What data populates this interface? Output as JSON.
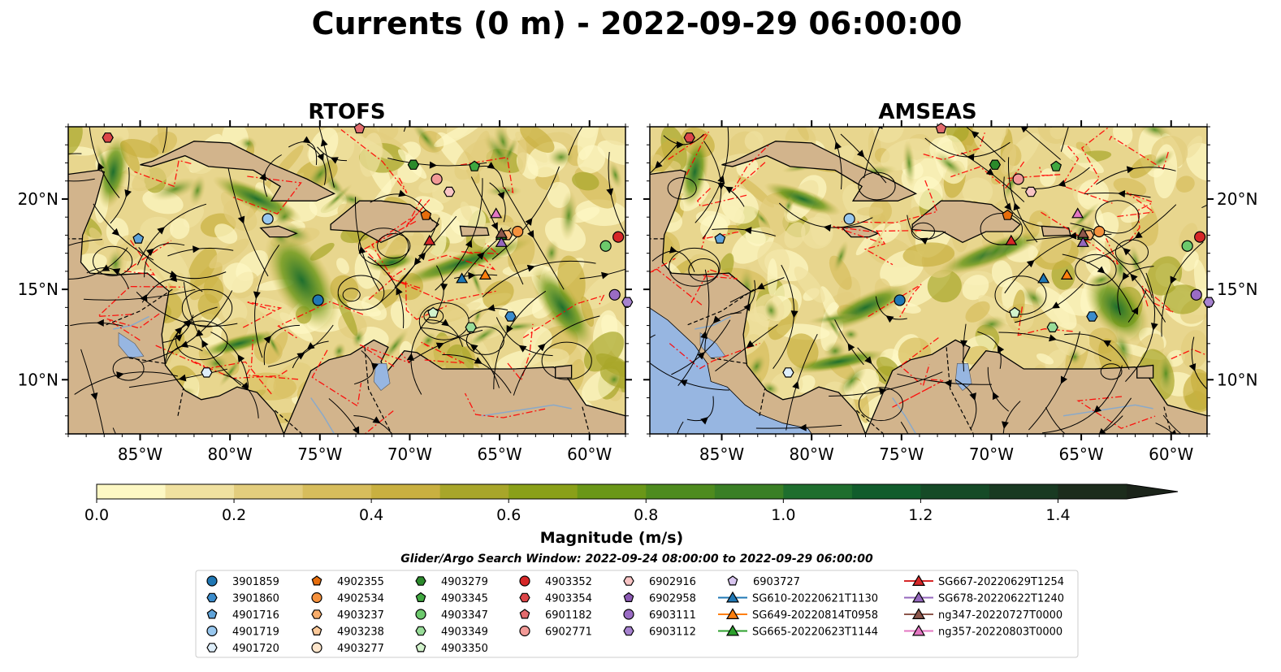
{
  "figure": {
    "title": "Currents (0 m) - 2022-09-29 06:00:00",
    "search_window": "Glider/Argo Search Window: 2022-09-24 08:00:00 to 2022-09-29 06:00:00"
  },
  "colors": {
    "land": "#d2b48c",
    "ocean_outside_domain": "#97b6e1",
    "eez_lines": "#ff0000",
    "streamlines": "#000000"
  },
  "chart_data": [
    {
      "type": "heatmap",
      "title": "RTOFS",
      "xlim": [
        -89,
        -58
      ],
      "ylim": [
        7,
        24
      ],
      "x_ticks": [
        -85,
        -80,
        -75,
        -70,
        -65,
        -60
      ],
      "x_tick_labels": [
        "85°W",
        "80°W",
        "75°W",
        "70°W",
        "65°W",
        "60°W"
      ],
      "y_ticks": [
        10,
        15,
        20
      ],
      "y_tick_labels": [
        "10°N",
        "15°N",
        "20°N"
      ],
      "y_label_side": "left"
    },
    {
      "type": "heatmap",
      "title": "AMSEAS",
      "xlim": [
        -89,
        -58
      ],
      "ylim": [
        7,
        24
      ],
      "x_ticks": [
        -85,
        -80,
        -75,
        -70,
        -65,
        -60
      ],
      "x_tick_labels": [
        "85°W",
        "80°W",
        "75°W",
        "70°W",
        "65°W",
        "60°W"
      ],
      "y_ticks": [
        10,
        15,
        20
      ],
      "y_tick_labels": [
        "10°N",
        "15°N",
        "20°N"
      ],
      "y_label_side": "right"
    }
  ],
  "colorbar": {
    "label": "Magnitude (m/s)",
    "min": 0.0,
    "max": 1.5,
    "step": 0.1,
    "extend": "max",
    "ticks": [
      0.0,
      0.2,
      0.4,
      0.6,
      0.8,
      1.0,
      1.2,
      1.4
    ],
    "tick_labels": [
      "0.0",
      "0.2",
      "0.4",
      "0.6",
      "0.8",
      "1.0",
      "1.2",
      "1.4"
    ],
    "colors": [
      "#fdf8c4",
      "#f0e1a0",
      "#e3cd7d",
      "#d7bd5c",
      "#c9b040",
      "#a8a62a",
      "#8aa019",
      "#6a9718",
      "#4e8b1e",
      "#3a7f25",
      "#1e6e2e",
      "#115c2c",
      "#154a27",
      "#193a22",
      "#1c2c1c"
    ],
    "extend_color": "#1b241a"
  },
  "legend": {
    "columns": [
      [
        {
          "label": "3901859",
          "marker": "circle",
          "color": "#1f77b4"
        },
        {
          "label": "3901860",
          "marker": "hexagon",
          "color": "#3b8ccc"
        },
        {
          "label": "4901716",
          "marker": "pentagon",
          "color": "#5fa3d9"
        },
        {
          "label": "4901719",
          "marker": "circle",
          "color": "#98c7ee"
        },
        {
          "label": "4901720",
          "marker": "hexagon",
          "color": "#deeefa"
        }
      ],
      [
        {
          "label": "4902355",
          "marker": "pentagon",
          "color": "#e66d0c"
        },
        {
          "label": "4902534",
          "marker": "circle",
          "color": "#f5913d"
        },
        {
          "label": "4903237",
          "marker": "hexagon",
          "color": "#f8ad6b"
        },
        {
          "label": "4903238",
          "marker": "pentagon",
          "color": "#fbc999"
        },
        {
          "label": "4903277",
          "marker": "circle",
          "color": "#fde5cb"
        }
      ],
      [
        {
          "label": "4903279",
          "marker": "hexagon",
          "color": "#2b8a2b"
        },
        {
          "label": "4903345",
          "marker": "pentagon",
          "color": "#40a840"
        },
        {
          "label": "4903347",
          "marker": "circle",
          "color": "#6cc96c"
        },
        {
          "label": "4903349",
          "marker": "hexagon",
          "color": "#98dc98"
        },
        {
          "label": "4903350",
          "marker": "pentagon",
          "color": "#d2f3cc"
        }
      ],
      [
        {
          "label": "4903352",
          "marker": "circle",
          "color": "#d62728"
        },
        {
          "label": "4903354",
          "marker": "hexagon",
          "color": "#dc4548"
        },
        {
          "label": "6901182",
          "marker": "pentagon",
          "color": "#e36b6d"
        },
        {
          "label": "6902771",
          "marker": "circle",
          "color": "#f29a97"
        }
      ],
      [
        {
          "label": "6902916",
          "marker": "hexagon",
          "color": "#f8c4c4"
        },
        {
          "label": "6902958",
          "marker": "pentagon",
          "color": "#8c5ab4"
        },
        {
          "label": "6903111",
          "marker": "circle",
          "color": "#9a6cc4"
        },
        {
          "label": "6903112",
          "marker": "hexagon",
          "color": "#a682cf"
        }
      ],
      [
        {
          "label": "6903727",
          "marker": "pentagon",
          "color": "#d8c5ef"
        },
        {
          "label": "SG610-20220621T1130",
          "marker": "triangle",
          "color": "#1f77b4",
          "line": true
        },
        {
          "label": "SG649-20220814T0958",
          "marker": "triangle",
          "color": "#ff7f0e",
          "line": true
        },
        {
          "label": "SG665-20220623T1144",
          "marker": "triangle",
          "color": "#2ca02c",
          "line": true
        }
      ],
      [
        {
          "label": "SG667-20220629T1254",
          "marker": "triangle",
          "color": "#d62728",
          "line": true
        },
        {
          "label": "SG678-20220622T1240",
          "marker": "triangle",
          "color": "#9467bd",
          "line": true
        },
        {
          "label": "ng347-20220727T0000",
          "marker": "triangle",
          "color": "#8c564b",
          "line": true
        },
        {
          "label": "ng357-20220803T0000",
          "marker": "triangle",
          "color": "#e377c2",
          "line": true
        }
      ]
    ]
  },
  "platforms": [
    {
      "id": "3901859",
      "lon": -75.1,
      "lat": 14.4
    },
    {
      "id": "3901860",
      "lon": -64.4,
      "lat": 13.5
    },
    {
      "id": "4901716",
      "lon": -85.1,
      "lat": 17.8
    },
    {
      "id": "4901719",
      "lon": -77.9,
      "lat": 18.9
    },
    {
      "id": "4901720",
      "lon": -81.3,
      "lat": 10.4
    },
    {
      "id": "4902355",
      "lon": -69.1,
      "lat": 19.1
    },
    {
      "id": "4902534",
      "lon": -64.0,
      "lat": 18.2
    },
    {
      "id": "4903237",
      "lon": -64.6,
      "lat": 18.0
    },
    {
      "id": "4903279",
      "lon": -69.8,
      "lat": 21.9
    },
    {
      "id": "4903345",
      "lon": -66.4,
      "lat": 21.8
    },
    {
      "id": "4903347",
      "lon": -59.1,
      "lat": 17.4
    },
    {
      "id": "4903349",
      "lon": -66.6,
      "lat": 12.9
    },
    {
      "id": "4903350",
      "lon": -68.7,
      "lat": 13.7
    },
    {
      "id": "4903352",
      "lon": -58.4,
      "lat": 17.9
    },
    {
      "id": "4903354",
      "lon": -86.8,
      "lat": 23.4
    },
    {
      "id": "6901182",
      "lon": -72.8,
      "lat": 23.9
    },
    {
      "id": "6902771",
      "lon": -68.5,
      "lat": 21.1
    },
    {
      "id": "6902916",
      "lon": -67.8,
      "lat": 20.4
    },
    {
      "id": "6903111",
      "lon": -58.6,
      "lat": 14.7
    },
    {
      "id": "6903112",
      "lon": -57.9,
      "lat": 14.3
    },
    {
      "id": "SG610-20220621T1130",
      "lon": -67.1,
      "lat": 15.6
    },
    {
      "id": "SG649-20220814T0958",
      "lon": -65.8,
      "lat": 15.8
    },
    {
      "id": "SG665-20220623T1144",
      "lon": -64.9,
      "lat": 18.0
    },
    {
      "id": "SG667-20220629T1254",
      "lon": -68.9,
      "lat": 17.7
    },
    {
      "id": "SG678-20220622T1240",
      "lon": -64.9,
      "lat": 17.6
    },
    {
      "id": "ng347-20220727T0000",
      "lon": -64.9,
      "lat": 18.1
    },
    {
      "id": "ng357-20220803T0000",
      "lon": -65.2,
      "lat": 19.2
    }
  ]
}
